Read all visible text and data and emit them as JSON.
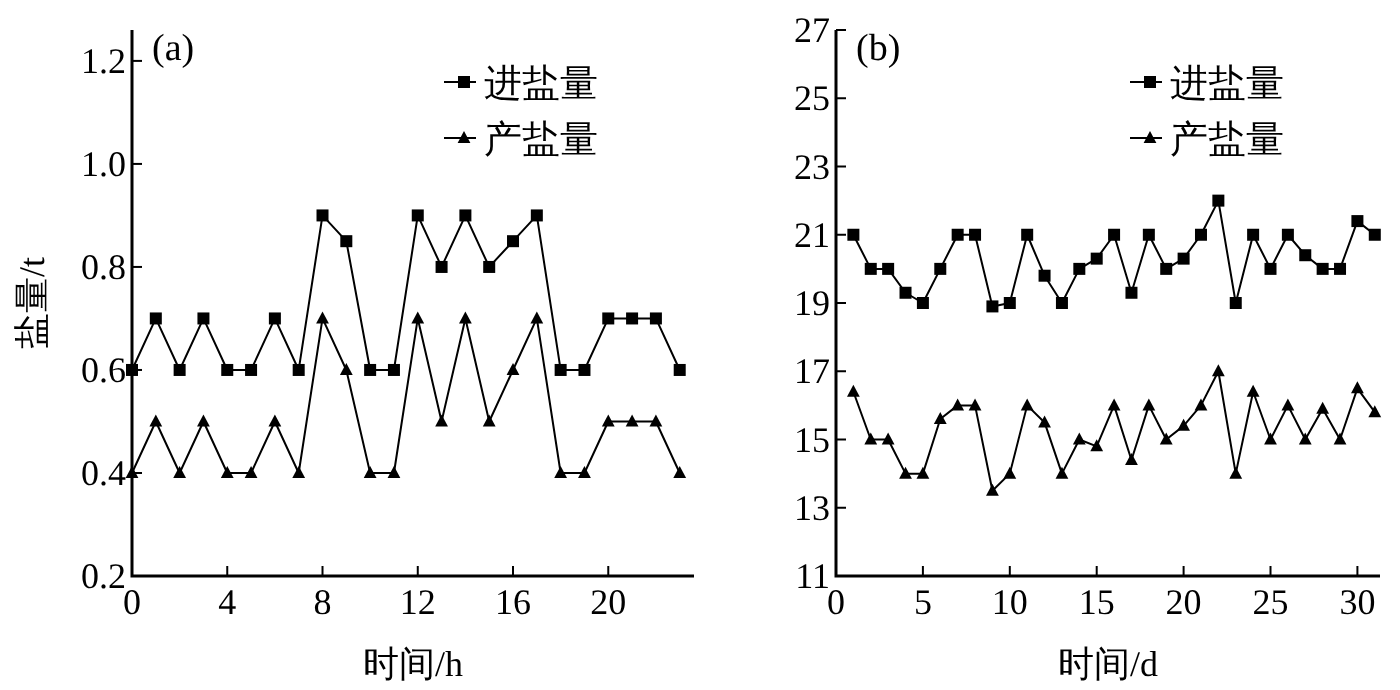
{
  "chart_data": [
    {
      "type": "line",
      "title": "(a)",
      "xlabel": "时间/h",
      "ylabel": "盐量/t",
      "xlim": [
        0,
        23.6
      ],
      "xticks": [
        0,
        4,
        8,
        12,
        16,
        20
      ],
      "ylim": [
        0.2,
        1.26
      ],
      "yticks": [
        0.2,
        {
          "value": 0.4,
          "label": "0.4"
        },
        {
          "value": 0.6,
          "label": "0.6"
        },
        {
          "value": 0.8,
          "label": "0.8"
        },
        {
          "value": 1.0,
          "label": "1.0"
        },
        {
          "value": 1.2,
          "label": "1.2"
        }
      ],
      "legend": "top right",
      "x": [
        0,
        1,
        2,
        3,
        4,
        5,
        6,
        7,
        8,
        9,
        10,
        11,
        12,
        13,
        14,
        15,
        16,
        17,
        18,
        19,
        20,
        21,
        22,
        23
      ],
      "series": [
        {
          "name": "进盐量",
          "color": "#000000",
          "marker": "square",
          "values": [
            0.6,
            0.7,
            0.6,
            0.7,
            0.6,
            0.6,
            0.7,
            0.6,
            0.9,
            0.85,
            0.6,
            0.6,
            0.9,
            0.8,
            0.9,
            0.8,
            0.85,
            0.9,
            0.6,
            0.6,
            0.7,
            0.7,
            0.7,
            0.6
          ]
        },
        {
          "name": "产盐量",
          "color": "#000000",
          "marker": "triangle",
          "values": [
            0.4,
            0.5,
            0.4,
            0.5,
            0.4,
            0.4,
            0.5,
            0.4,
            0.7,
            0.6,
            0.4,
            0.4,
            0.7,
            0.5,
            0.7,
            0.5,
            0.6,
            0.7,
            0.4,
            0.4,
            0.5,
            0.5,
            0.5,
            0.4
          ]
        }
      ]
    },
    {
      "type": "line",
      "title": "(b)",
      "xlabel": "时间/d",
      "xlim": [
        0,
        31.3
      ],
      "xticks": [
        0,
        5,
        10,
        15,
        20,
        25,
        30
      ],
      "ylim": [
        11,
        27
      ],
      "yticks": [
        11,
        13,
        15,
        17,
        19,
        21,
        23,
        25,
        27
      ],
      "legend": "top right",
      "x": [
        1,
        2,
        3,
        4,
        5,
        6,
        7,
        8,
        9,
        10,
        11,
        12,
        13,
        14,
        15,
        16,
        17,
        18,
        19,
        20,
        21,
        22,
        23,
        24,
        25,
        26,
        27,
        28,
        29,
        30,
        31
      ],
      "series": [
        {
          "name": "进盐量",
          "color": "#000000",
          "marker": "square",
          "values": [
            21,
            20,
            20,
            19.3,
            19,
            20,
            21,
            21,
            18.9,
            19,
            21,
            19.8,
            19,
            20,
            20.3,
            21,
            19.3,
            21,
            20,
            20.3,
            21,
            22,
            19,
            21,
            20,
            21,
            20.4,
            20,
            20,
            21.4,
            21
          ]
        },
        {
          "name": "产盐量",
          "color": "#000000",
          "marker": "triangle",
          "values": [
            16.4,
            15,
            15,
            14,
            14,
            15.6,
            16,
            16,
            13.5,
            14,
            16,
            15.5,
            14,
            15,
            14.8,
            16,
            14.4,
            16,
            15,
            15.4,
            16,
            17,
            14,
            16.4,
            15,
            16,
            15,
            15.9,
            15,
            16.5,
            15.8
          ]
        }
      ]
    }
  ]
}
